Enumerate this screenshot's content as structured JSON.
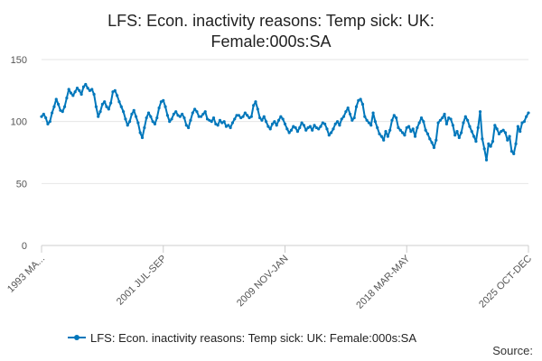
{
  "chart_data": {
    "type": "line",
    "title_line1": "LFS: Econ. inactivity reasons: Temp sick: UK:",
    "title_line2": "Female:000s:SA",
    "xlabel": "",
    "ylabel": "",
    "ylim": [
      0,
      150
    ],
    "yticks": [
      0,
      50,
      100,
      150
    ],
    "xticks": [
      "1993 MA...",
      "2001 JUL-SEP",
      "2009 NOV-JAN",
      "2018 MAR-MAY",
      "2025 OCT-DEC"
    ],
    "grid": true,
    "legend": "bottom",
    "series": [
      {
        "name": "LFS: Econ. inactivity reasons: Temp sick: UK: Female:000s:SA",
        "color": "#0077bb",
        "x_start": "1993",
        "x_end": "2025",
        "values": [
          104,
          106,
          103,
          98,
          100,
          107,
          112,
          118,
          114,
          109,
          108,
          112,
          119,
          126,
          123,
          121,
          124,
          127,
          125,
          122,
          128,
          130,
          127,
          125,
          126,
          122,
          112,
          104,
          108,
          114,
          116,
          112,
          110,
          115,
          124,
          125,
          121,
          116,
          112,
          108,
          102,
          97,
          100,
          106,
          109,
          104,
          99,
          91,
          87,
          95,
          103,
          107,
          104,
          100,
          98,
          103,
          111,
          116,
          117,
          112,
          105,
          100,
          102,
          106,
          108,
          105,
          104,
          106,
          103,
          97,
          95,
          101,
          107,
          110,
          108,
          104,
          104,
          106,
          108,
          102,
          101,
          100,
          103,
          98,
          97,
          101,
          99,
          100,
          96,
          97,
          95,
          99,
          102,
          105,
          105,
          103,
          104,
          107,
          105,
          103,
          104,
          113,
          116,
          110,
          103,
          101,
          104,
          100,
          96,
          94,
          98,
          100,
          97,
          101,
          104,
          102,
          98,
          94,
          91,
          93,
          96,
          95,
          92,
          95,
          99,
          97,
          93,
          95,
          96,
          93,
          97,
          95,
          94,
          96,
          99,
          98,
          94,
          89,
          91,
          94,
          98,
          100,
          97,
          102,
          104,
          108,
          111,
          106,
          101,
          103,
          112,
          117,
          118,
          114,
          104,
          101,
          99,
          97,
          107,
          100,
          95,
          90,
          88,
          85,
          92,
          88,
          93,
          101,
          105,
          103,
          95,
          93,
          91,
          89,
          95,
          96,
          92,
          94,
          88,
          95,
          99,
          103,
          100,
          93,
          90,
          86,
          83,
          79,
          85,
          99,
          101,
          103,
          106,
          98,
          103,
          102,
          97,
          89,
          92,
          87,
          91,
          99,
          104,
          101,
          96,
          92,
          88,
          84,
          95,
          108,
          86,
          78,
          69,
          82,
          80,
          84,
          97,
          94,
          90,
          92,
          93,
          91,
          85,
          88,
          76,
          74,
          82,
          96,
          92,
          99,
          100,
          104,
          107
        ]
      }
    ],
    "source_label": "Source:"
  }
}
